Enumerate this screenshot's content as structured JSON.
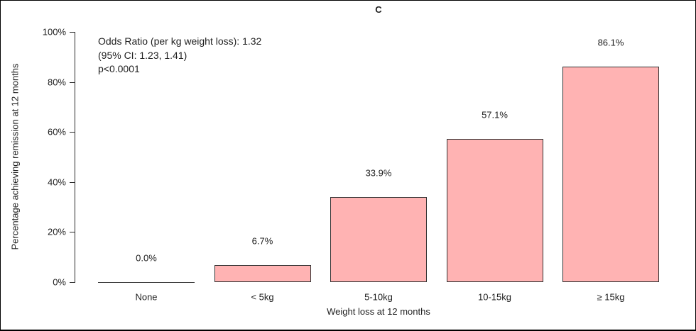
{
  "title": "C",
  "chart_data": {
    "type": "bar",
    "title": "C",
    "categories": [
      "None",
      "< 5kg",
      "5-10kg",
      "10-15kg",
      "≥ 15kg"
    ],
    "values": [
      0.0,
      6.7,
      33.9,
      57.1,
      86.1
    ],
    "value_labels": [
      "0.0%",
      "6.7%",
      "33.9%",
      "57.1%",
      "86.1%"
    ],
    "xlabel": "Weight loss at 12 months",
    "ylabel": "Percentage achieving remission at 12 months",
    "y_tick_values": [
      0,
      20,
      40,
      60,
      80,
      100
    ],
    "y_tick_labels": [
      "0%",
      "20%",
      "40%",
      "60%",
      "80%",
      "100%"
    ],
    "ylim": [
      0,
      100
    ],
    "grid": false,
    "legend": null,
    "bar_fill_color": "#FFB3B3",
    "bar_border_color": "#333333",
    "annotation": "Odds Ratio (per kg weight loss): 1.32\n(95% CI: 1.23, 1.41)\np<0.0001"
  }
}
